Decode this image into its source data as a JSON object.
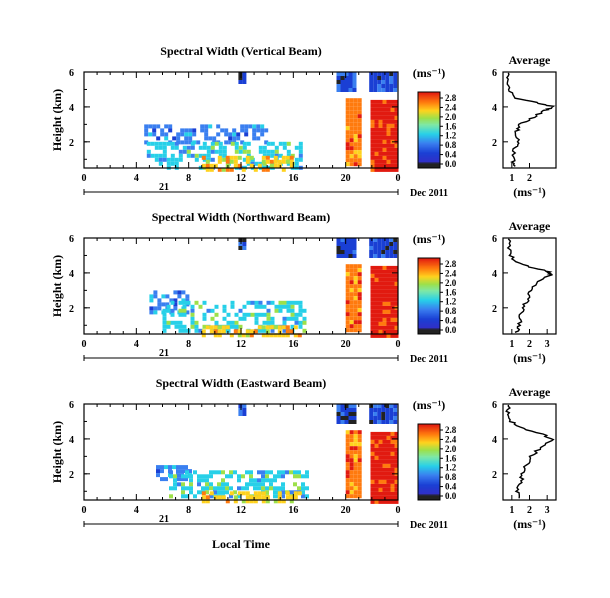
{
  "figure": {
    "xlabel": "Local Time",
    "date_label": "Dec 2011",
    "day_label": "21"
  },
  "colors": {
    "dark": "#222222",
    "blue_dark": "#1a3fd4",
    "blue": "#3a7ff0",
    "cyan": "#27d0e8",
    "green": "#9de04a",
    "yellow": "#ffd21e",
    "orange": "#ff7a0e",
    "red": "#e11a10"
  },
  "chart_data": [
    {
      "type": "heatmap",
      "title": "Spectral Width (Vertical Beam)",
      "ylabel": "Height (km)",
      "xlim": [
        0,
        24
      ],
      "ylim": [
        0.5,
        6
      ],
      "x_ticks": [
        "0",
        "4",
        "8",
        "12",
        "16",
        "20",
        "0"
      ],
      "y_ticks": [
        "2",
        "4",
        "6"
      ],
      "colorbar_label": "(ms⁻¹)",
      "colorbar_ticks": [
        "0.0",
        "0.4",
        "0.8",
        "1.2",
        "1.6",
        "2.0",
        "2.4",
        "2.8"
      ],
      "patches": [
        {
          "x": [
            4.6,
            14.0
          ],
          "y": [
            2.0,
            3.0
          ],
          "level": 2,
          "sparse": true
        },
        {
          "x": [
            4.8,
            16.5
          ],
          "y": [
            0.6,
            2.0
          ],
          "level": 3,
          "sparse": true
        },
        {
          "x": [
            9.0,
            16.0
          ],
          "y": [
            0.5,
            1.2
          ],
          "level": 5,
          "sparse": true
        },
        {
          "x": [
            11.8,
            12.4
          ],
          "y": [
            5.5,
            6.0
          ],
          "level": 1,
          "sparse": false
        },
        {
          "x": [
            19.3,
            20.8
          ],
          "y": [
            5.0,
            6.0
          ],
          "level": 1,
          "sparse": false
        },
        {
          "x": [
            21.8,
            23.8
          ],
          "y": [
            5.0,
            6.0
          ],
          "level": 1,
          "sparse": false
        },
        {
          "x": [
            20.0,
            21.2
          ],
          "y": [
            0.7,
            4.5
          ],
          "level": 6,
          "sparse": false
        },
        {
          "x": [
            21.9,
            23.9
          ],
          "y": [
            0.5,
            4.4
          ],
          "level": 7,
          "sparse": false
        }
      ],
      "average": {
        "title": "Average",
        "xlabel": "(ms⁻¹)",
        "x_ticks": [
          "1",
          "2"
        ],
        "xlim": [
          0.5,
          3.5
        ],
        "profile": [
          [
            1.2,
            0.6
          ],
          [
            1.05,
            1.0
          ],
          [
            1.15,
            1.6
          ],
          [
            1.35,
            2.0
          ],
          [
            1.3,
            2.6
          ],
          [
            1.5,
            3.0
          ],
          [
            2.2,
            3.4
          ],
          [
            2.9,
            3.8
          ],
          [
            3.4,
            4.0
          ],
          [
            2.6,
            4.2
          ],
          [
            1.2,
            4.5
          ],
          [
            0.9,
            5.0
          ],
          [
            0.8,
            5.5
          ],
          [
            0.8,
            5.95
          ]
        ]
      }
    },
    {
      "type": "heatmap",
      "title": "Spectral Width (Northward Beam)",
      "ylabel": "Height (km)",
      "xlim": [
        0,
        24
      ],
      "ylim": [
        0.5,
        6
      ],
      "x_ticks": [
        "0",
        "4",
        "8",
        "12",
        "16",
        "20",
        "0"
      ],
      "y_ticks": [
        "2",
        "4",
        "6"
      ],
      "colorbar_label": "(ms⁻¹)",
      "colorbar_ticks": [
        "0.0",
        "0.4",
        "0.8",
        "1.2",
        "1.6",
        "2.0",
        "2.4",
        "2.8"
      ],
      "patches": [
        {
          "x": [
            5.0,
            8.0
          ],
          "y": [
            1.8,
            3.0
          ],
          "level": 2,
          "sparse": true
        },
        {
          "x": [
            6.0,
            17.0
          ],
          "y": [
            0.6,
            2.4
          ],
          "level": 3,
          "sparse": true
        },
        {
          "x": [
            9.0,
            16.5
          ],
          "y": [
            0.5,
            1.0
          ],
          "level": 5,
          "sparse": true
        },
        {
          "x": [
            11.8,
            12.4
          ],
          "y": [
            5.5,
            6.0
          ],
          "level": 1,
          "sparse": false
        },
        {
          "x": [
            19.3,
            20.8
          ],
          "y": [
            5.0,
            6.0
          ],
          "level": 1,
          "sparse": false
        },
        {
          "x": [
            21.8,
            23.8
          ],
          "y": [
            5.0,
            6.0
          ],
          "level": 1,
          "sparse": false
        },
        {
          "x": [
            20.0,
            21.2
          ],
          "y": [
            0.7,
            4.5
          ],
          "level": 6,
          "sparse": false
        },
        {
          "x": [
            21.9,
            23.9
          ],
          "y": [
            0.5,
            4.4
          ],
          "level": 7,
          "sparse": false
        }
      ],
      "average": {
        "title": "Average",
        "xlabel": "(ms⁻¹)",
        "x_ticks": [
          "1",
          "2",
          "3"
        ],
        "xlim": [
          0.5,
          3.5
        ],
        "profile": [
          [
            1.3,
            0.6
          ],
          [
            1.4,
            1.0
          ],
          [
            1.5,
            1.5
          ],
          [
            1.6,
            2.0
          ],
          [
            1.9,
            2.5
          ],
          [
            2.1,
            3.0
          ],
          [
            2.4,
            3.5
          ],
          [
            3.2,
            3.9
          ],
          [
            3.0,
            4.1
          ],
          [
            1.8,
            4.4
          ],
          [
            1.0,
            4.8
          ],
          [
            0.9,
            5.3
          ],
          [
            0.8,
            5.95
          ]
        ]
      }
    },
    {
      "type": "heatmap",
      "title": "Spectral Width (Eastward Beam)",
      "ylabel": "Height (km)",
      "xlim": [
        0,
        24
      ],
      "ylim": [
        0.5,
        6
      ],
      "x_ticks": [
        "0",
        "4",
        "8",
        "12",
        "16",
        "20",
        "0"
      ],
      "y_ticks": [
        "2",
        "4",
        "6"
      ],
      "colorbar_label": "(ms⁻¹)",
      "colorbar_ticks": [
        "0.0",
        "0.4",
        "0.8",
        "1.2",
        "1.6",
        "2.0",
        "2.4",
        "2.8"
      ],
      "patches": [
        {
          "x": [
            5.5,
            8.0
          ],
          "y": [
            1.8,
            2.5
          ],
          "level": 2,
          "sparse": true
        },
        {
          "x": [
            6.5,
            17.0
          ],
          "y": [
            0.6,
            2.2
          ],
          "level": 3,
          "sparse": true
        },
        {
          "x": [
            9.0,
            16.5
          ],
          "y": [
            0.5,
            1.0
          ],
          "level": 5,
          "sparse": true
        },
        {
          "x": [
            11.8,
            12.4
          ],
          "y": [
            5.5,
            6.0
          ],
          "level": 1,
          "sparse": false
        },
        {
          "x": [
            19.3,
            20.8
          ],
          "y": [
            5.0,
            6.0
          ],
          "level": 1,
          "sparse": false
        },
        {
          "x": [
            21.8,
            23.8
          ],
          "y": [
            5.0,
            6.0
          ],
          "level": 1,
          "sparse": false
        },
        {
          "x": [
            20.0,
            21.2
          ],
          "y": [
            0.7,
            4.5
          ],
          "level": 6,
          "sparse": false
        },
        {
          "x": [
            21.9,
            23.9
          ],
          "y": [
            0.5,
            4.4
          ],
          "level": 7,
          "sparse": false
        }
      ],
      "average": {
        "title": "Average",
        "xlabel": "(ms⁻¹)",
        "x_ticks": [
          "1",
          "2",
          "3"
        ],
        "xlim": [
          0.5,
          3.5
        ],
        "profile": [
          [
            1.4,
            0.6
          ],
          [
            1.3,
            1.0
          ],
          [
            1.5,
            1.5
          ],
          [
            1.6,
            2.0
          ],
          [
            1.8,
            2.5
          ],
          [
            2.1,
            3.0
          ],
          [
            2.6,
            3.5
          ],
          [
            3.3,
            3.9
          ],
          [
            2.9,
            4.2
          ],
          [
            1.6,
            4.6
          ],
          [
            1.0,
            5.0
          ],
          [
            0.8,
            5.5
          ],
          [
            0.8,
            5.95
          ]
        ]
      }
    }
  ]
}
